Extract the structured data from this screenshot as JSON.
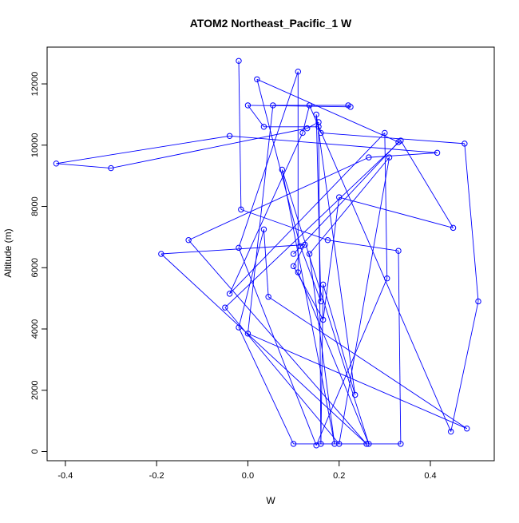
{
  "chart_data": {
    "type": "line",
    "title": "ATOM2 Northeast_Pacific_1 W",
    "xlabel": "W",
    "ylabel": "Altitude (m)",
    "xlim": [
      -0.44,
      0.54
    ],
    "ylim": [
      -300,
      13200
    ],
    "x_ticks": [
      -0.4,
      -0.2,
      0.0,
      0.2,
      0.4
    ],
    "x_tick_labels": [
      "-0.4",
      "-0.2",
      "0.0",
      "0.2",
      "0.4"
    ],
    "y_ticks": [
      0,
      2000,
      4000,
      6000,
      8000,
      10000,
      12000
    ],
    "y_tick_labels": [
      "0",
      "2000",
      "4000",
      "6000",
      "8000",
      "10000",
      "12000"
    ],
    "grid": false,
    "marker": "open-circle",
    "series": [
      {
        "color": "#0000ff",
        "points": [
          [
            -0.02,
            12750
          ],
          [
            -0.015,
            7900
          ],
          [
            0.175,
            6900
          ],
          [
            0.33,
            6550
          ],
          [
            0.335,
            250
          ],
          [
            0.1,
            250
          ],
          [
            -0.02,
            4050
          ],
          [
            0.035,
            7250
          ],
          [
            0.045,
            5050
          ],
          [
            0.48,
            750
          ],
          [
            0.0,
            3850
          ],
          [
            0.055,
            11300
          ],
          [
            0.22,
            11300
          ],
          [
            0.225,
            11250
          ],
          [
            0.0,
            11300
          ],
          [
            0.035,
            10600
          ],
          [
            0.155,
            10600
          ],
          [
            0.16,
            10400
          ],
          [
            0.475,
            10050
          ],
          [
            0.505,
            4900
          ],
          [
            0.445,
            650
          ],
          [
            0.135,
            11300
          ],
          [
            0.12,
            10400
          ],
          [
            -0.04,
            5150
          ],
          [
            0.3,
            10400
          ],
          [
            0.305,
            5650
          ],
          [
            0.15,
            200
          ],
          [
            -0.02,
            6650
          ],
          [
            0.11,
            12400
          ],
          [
            0.11,
            5850
          ],
          [
            0.265,
            250
          ],
          [
            0.075,
            9200
          ],
          [
            0.19,
            250
          ],
          [
            0.135,
            6450
          ],
          [
            0.31,
            9600
          ],
          [
            0.2,
            250
          ],
          [
            -0.05,
            4700
          ],
          [
            0.335,
            10150
          ],
          [
            0.45,
            7300
          ],
          [
            0.2,
            8300
          ],
          [
            0.165,
            4300
          ],
          [
            0.1,
            6050
          ],
          [
            0.125,
            6750
          ],
          [
            -0.19,
            6450
          ],
          [
            0.26,
            250
          ],
          [
            -0.13,
            6900
          ],
          [
            0.265,
            9600
          ],
          [
            0.415,
            9750
          ],
          [
            -0.04,
            10300
          ],
          [
            -0.42,
            9400
          ],
          [
            -0.3,
            9250
          ],
          [
            0.13,
            10550
          ],
          [
            0.155,
            10750
          ],
          [
            0.16,
            250
          ],
          [
            0.165,
            5450
          ],
          [
            0.235,
            1850
          ],
          [
            0.15,
            11000
          ],
          [
            0.16,
            4900
          ],
          [
            0.115,
            6700
          ],
          [
            0.02,
            12150
          ],
          [
            0.33,
            10100
          ],
          [
            0.1,
            6450
          ]
        ]
      }
    ]
  }
}
